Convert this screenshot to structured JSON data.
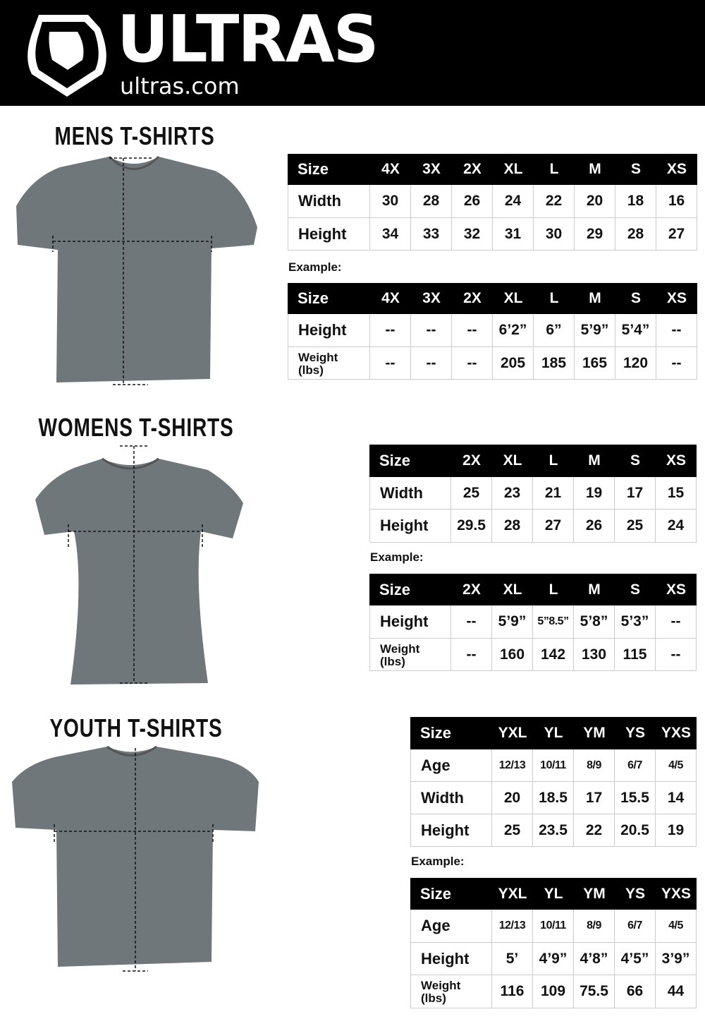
{
  "header": {
    "brand": "ULTRAS",
    "domain": "ultras.com",
    "logo": "shield-logo"
  },
  "sections": [
    {
      "title": "MENS T-SHIRTS",
      "example_label": "Example:",
      "measure": {
        "header": [
          "Size",
          "4X",
          "3X",
          "2X",
          "XL",
          "L",
          "M",
          "S",
          "XS"
        ],
        "rows": [
          {
            "label": "Width",
            "cells": [
              "30",
              "28",
              "26",
              "24",
              "22",
              "20",
              "18",
              "16"
            ]
          },
          {
            "label": "Height",
            "cells": [
              "34",
              "33",
              "32",
              "31",
              "30",
              "29",
              "28",
              "27"
            ]
          }
        ]
      },
      "example": {
        "header": [
          "Size",
          "4X",
          "3X",
          "2X",
          "XL",
          "L",
          "M",
          "S",
          "XS"
        ],
        "rows": [
          {
            "label": "Height",
            "cells": [
              "--",
              "--",
              "--",
              "6’2”",
              "6”",
              "5’9”",
              "5’4”",
              "--"
            ]
          },
          {
            "label": "Weight\n(lbs)",
            "cells": [
              "--",
              "--",
              "--",
              "205",
              "185",
              "165",
              "120",
              "--"
            ]
          }
        ]
      }
    },
    {
      "title": "WOMENS T-SHIRTS",
      "example_label": "Example:",
      "measure": {
        "header": [
          "Size",
          "2X",
          "XL",
          "L",
          "M",
          "S",
          "XS"
        ],
        "rows": [
          {
            "label": "Width",
            "cells": [
              "25",
              "23",
              "21",
              "19",
              "17",
              "15"
            ]
          },
          {
            "label": "Height",
            "cells": [
              "29.5",
              "28",
              "27",
              "26",
              "25",
              "24"
            ]
          }
        ]
      },
      "example": {
        "header": [
          "Size",
          "2X",
          "XL",
          "L",
          "M",
          "S",
          "XS"
        ],
        "rows": [
          {
            "label": "Height",
            "cells": [
              "--",
              "5’9”",
              "5”8.5”",
              "5’8”",
              "5’3”",
              "--"
            ]
          },
          {
            "label": "Weight\n(lbs)",
            "cells": [
              "--",
              "160",
              "142",
              "130",
              "115",
              "--"
            ]
          }
        ]
      }
    },
    {
      "title": "YOUTH T-SHIRTS",
      "example_label": "Example:",
      "measure": {
        "header": [
          "Size",
          "YXL",
          "YL",
          "YM",
          "YS",
          "YXS"
        ],
        "rows": [
          {
            "label": "Age",
            "small": true,
            "cells": [
              "12/13",
              "10/11",
              "8/9",
              "6/7",
              "4/5"
            ]
          },
          {
            "label": "Width",
            "cells": [
              "20",
              "18.5",
              "17",
              "15.5",
              "14"
            ]
          },
          {
            "label": "Height",
            "cells": [
              "25",
              "23.5",
              "22",
              "20.5",
              "19"
            ]
          }
        ]
      },
      "example": {
        "header": [
          "Size",
          "YXL",
          "YL",
          "YM",
          "YS",
          "YXS"
        ],
        "rows": [
          {
            "label": "Age",
            "small": true,
            "cells": [
              "12/13",
              "10/11",
              "8/9",
              "6/7",
              "4/5"
            ]
          },
          {
            "label": "Height",
            "cells": [
              "5’",
              "4’9”",
              "4’8”",
              "4’5”",
              "3’9”"
            ]
          },
          {
            "label": "Weight\n(lbs)",
            "cells": [
              "116",
              "109",
              "75.5",
              "66",
              "44"
            ]
          }
        ]
      }
    }
  ],
  "colors": {
    "banner": "#000000",
    "shirt": "#6f777b",
    "header_row": "#000000"
  }
}
